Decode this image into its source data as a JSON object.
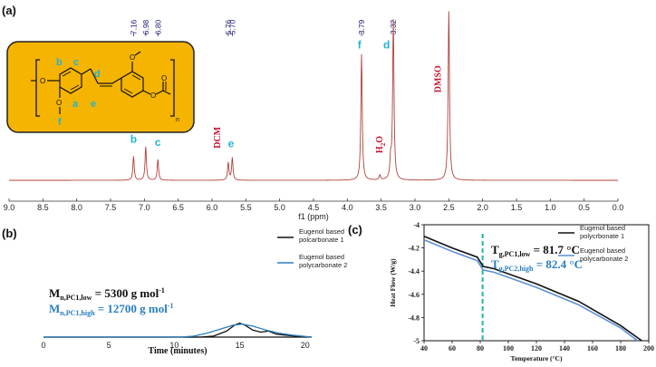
{
  "panels": {
    "a": "(a)",
    "b": "(b)",
    "c": "(c)"
  },
  "chart_data": [
    {
      "type": "line",
      "panel": "a",
      "xlabel": "f1 (ppm)",
      "xlim": [
        9.0,
        0.0
      ],
      "x_reversed": true,
      "xticks": [
        "9.0",
        "8.5",
        "8.0",
        "7.5",
        "7.0",
        "6.5",
        "6.0",
        "5.5",
        "5.0",
        "4.5",
        "4.0",
        "3.5",
        "3.0",
        "2.5",
        "2.0",
        "1.5",
        "1.0",
        "0.5",
        "0.0"
      ],
      "line_color": "#b0413e",
      "peak_values": [
        "7.16",
        "6.98",
        "6.80",
        "5.76",
        "5.70",
        "3.79",
        "3.32"
      ],
      "peaks": [
        {
          "ppm": 7.16,
          "height": 0.15
        },
        {
          "ppm": 6.98,
          "height": 0.21
        },
        {
          "ppm": 6.8,
          "height": 0.13
        },
        {
          "ppm": 5.76,
          "height": 0.11
        },
        {
          "ppm": 5.7,
          "height": 0.14
        },
        {
          "ppm": 3.79,
          "height": 0.79
        },
        {
          "ppm": 3.32,
          "height": 1.0
        },
        {
          "ppm": 3.36,
          "height": 0.12
        },
        {
          "ppm": 3.52,
          "height": 0.03
        },
        {
          "ppm": 2.5,
          "height": 1.06
        }
      ],
      "peak_labels": [
        {
          "text": "b",
          "ppm": 7.16,
          "level": 0.22
        },
        {
          "text": "a",
          "ppm": 6.98,
          "level": 0.28
        },
        {
          "text": "c",
          "ppm": 6.8,
          "level": 0.2
        },
        {
          "text": "e",
          "ppm": 5.72,
          "level": 0.19
        },
        {
          "text": "f",
          "ppm": 3.82,
          "level": 0.81
        },
        {
          "text": "d",
          "ppm": 3.42,
          "level": 0.81
        }
      ],
      "solvent_labels": [
        {
          "text": "DCM",
          "ppm": 5.88,
          "level": 0.2
        },
        {
          "text": "H",
          "sub": "2",
          "tail": "O",
          "ppm": 3.48,
          "level": 0.17
        },
        {
          "text": "DMSO",
          "ppm": 2.62,
          "level": 0.55
        }
      ],
      "structure_labels": [
        "b",
        "c",
        "d",
        "a",
        "e",
        "f",
        "n"
      ]
    },
    {
      "type": "line",
      "panel": "b",
      "xlabel": "Time (minutes)",
      "xlim": [
        0,
        20.5
      ],
      "xticks": [
        0,
        5,
        10,
        15,
        20
      ],
      "series": [
        {
          "name": "Eugenol based polcarbonate 1",
          "color": "#111111",
          "points": [
            [
              0,
              0
            ],
            [
              12.0,
              0.0
            ],
            [
              13.0,
              0.01
            ],
            [
              14.0,
              0.06
            ],
            [
              14.6,
              0.12
            ],
            [
              15.0,
              0.14
            ],
            [
              15.4,
              0.12
            ],
            [
              16.0,
              0.07
            ],
            [
              16.6,
              0.05
            ],
            [
              17.2,
              0.06
            ],
            [
              17.8,
              0.03
            ],
            [
              18.5,
              0.02
            ],
            [
              19.2,
              0.01
            ],
            [
              20.5,
              0.0
            ]
          ]
        },
        {
          "name": "Eugenol based polycarbonate 2",
          "color": "#2a7fc0",
          "points": [
            [
              0,
              0
            ],
            [
              10.5,
              0.0
            ],
            [
              11.5,
              0.01
            ],
            [
              12.5,
              0.04
            ],
            [
              13.5,
              0.08
            ],
            [
              14.5,
              0.12
            ],
            [
              15.2,
              0.13
            ],
            [
              16.0,
              0.11
            ],
            [
              17.0,
              0.07
            ],
            [
              18.0,
              0.04
            ],
            [
              19.0,
              0.02
            ],
            [
              20.5,
              0.0
            ]
          ]
        }
      ],
      "annotations": [
        {
          "main": "M",
          "sub": "n,PC1,low",
          "rest": " = 5300 g mol",
          "sup": "-1",
          "color": "#111111"
        },
        {
          "main": "M",
          "sub": "n,PC1,high",
          "rest": " = 12700 g mol",
          "sup": "-1",
          "color": "#2a7fc0"
        }
      ]
    },
    {
      "type": "line",
      "panel": "c",
      "xlabel": "Temperature (°C)",
      "ylabel": "Heat Flow (W/g)",
      "xlim": [
        40,
        200
      ],
      "ylim": [
        -5,
        -4
      ],
      "xticks": [
        40,
        60,
        80,
        100,
        120,
        140,
        160,
        180,
        200
      ],
      "yticks": [
        "-4",
        "-4.2",
        "-4.4",
        "-4.6",
        "-4.8",
        "-5"
      ],
      "tg_marker": 81.7,
      "series": [
        {
          "name": "Eugenol based polycrbonate 1",
          "color": "#111111",
          "points": [
            [
              40,
              -4.1
            ],
            [
              60,
              -4.2
            ],
            [
              78,
              -4.28
            ],
            [
              82,
              -4.36
            ],
            [
              90,
              -4.38
            ],
            [
              120,
              -4.51
            ],
            [
              150,
              -4.66
            ],
            [
              180,
              -4.87
            ],
            [
              195,
              -5.0
            ]
          ]
        },
        {
          "name": "Eugenol based polycarbonate 2",
          "color": "#5b8fd4",
          "points": [
            [
              40,
              -4.13
            ],
            [
              60,
              -4.23
            ],
            [
              78,
              -4.31
            ],
            [
              82,
              -4.39
            ],
            [
              90,
              -4.41
            ],
            [
              120,
              -4.54
            ],
            [
              150,
              -4.69
            ],
            [
              180,
              -4.89
            ],
            [
              192,
              -5.0
            ]
          ]
        }
      ],
      "annotations": [
        {
          "main": "T",
          "sub": "g,PC1,low",
          "rest": " = 81.7 °C",
          "color": "#111111"
        },
        {
          "main": "T",
          "sub": "g,PC2,high",
          "rest": " = 82.4 °C",
          "color": "#2a7fc0"
        }
      ]
    }
  ]
}
